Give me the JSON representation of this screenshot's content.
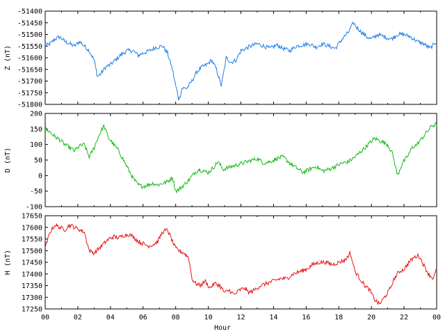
{
  "chart_data": {
    "type": "line",
    "xlabel": "Hour",
    "x_tick_labels": [
      "00",
      "02",
      "04",
      "06",
      "08",
      "10",
      "12",
      "14",
      "16",
      "18",
      "20",
      "22",
      "00"
    ],
    "x_range": [
      0,
      24
    ],
    "panels": [
      {
        "id": "z",
        "ylabel": "Z (nT)",
        "ylim": [
          -51800,
          -51400
        ],
        "yticks": [
          -51400,
          -51450,
          -51500,
          -51550,
          -51600,
          -51650,
          -51700,
          -51750,
          -51800
        ],
        "color": "#1f7fe6",
        "series": [
          {
            "x": [
              0,
              0.3,
              0.6,
              0.9,
              1.2,
              1.5,
              1.8,
              2.1,
              2.4,
              2.7,
              3.0,
              3.2,
              3.4,
              3.7,
              4.0,
              4.3,
              4.6,
              5.0,
              5.4,
              5.7,
              6.0,
              6.4,
              6.8,
              7.2,
              7.5,
              7.8,
              8.0,
              8.2,
              8.4,
              8.7,
              9.0,
              9.3,
              9.6,
              9.9,
              10.2,
              10.5,
              10.8,
              11.1,
              11.4,
              11.7,
              12.0,
              12.3,
              12.6,
              13.0,
              13.4,
              13.8,
              14.2,
              14.6,
              15.0,
              15.4,
              15.8,
              16.2,
              16.6,
              17.0,
              17.4,
              17.8,
              18.2,
              18.6,
              18.9,
              19.1,
              19.4,
              19.7,
              20.0,
              20.4,
              20.8,
              21.2,
              21.6,
              22.0,
              22.4,
              22.8,
              23.2,
              23.6,
              24.0
            ],
            "y": [
              -51550,
              -51540,
              -51520,
              -51510,
              -51530,
              -51540,
              -51550,
              -51530,
              -51550,
              -51570,
              -51610,
              -51680,
              -51670,
              -51640,
              -51630,
              -51610,
              -51590,
              -51570,
              -51570,
              -51590,
              -51580,
              -51570,
              -51555,
              -51550,
              -51580,
              -51650,
              -51720,
              -51780,
              -51730,
              -51730,
              -51700,
              -51660,
              -51640,
              -51630,
              -51610,
              -51650,
              -51720,
              -51600,
              -51620,
              -51610,
              -51570,
              -51560,
              -51550,
              -51540,
              -51550,
              -51560,
              -51545,
              -51560,
              -51570,
              -51550,
              -51545,
              -51540,
              -51555,
              -51540,
              -51550,
              -51560,
              -51520,
              -51490,
              -51450,
              -51470,
              -51490,
              -51510,
              -51520,
              -51500,
              -51510,
              -51520,
              -51500,
              -51500,
              -51510,
              -51530,
              -51540,
              -51560,
              -51530
            ]
          }
        ]
      },
      {
        "id": "d",
        "ylabel": "D (nT)",
        "ylim": [
          -100,
          200
        ],
        "yticks": [
          200,
          150,
          100,
          50,
          0,
          -50,
          -100
        ],
        "color": "#18b818",
        "series": [
          {
            "x": [
              0,
              0.3,
              0.6,
              0.9,
              1.2,
              1.5,
              1.8,
              2.1,
              2.4,
              2.7,
              3.0,
              3.3,
              3.6,
              3.9,
              4.2,
              4.5,
              4.8,
              5.1,
              5.4,
              5.7,
              6.0,
              6.3,
              6.6,
              6.9,
              7.2,
              7.5,
              7.8,
              8.0,
              8.2,
              8.5,
              8.8,
              9.1,
              9.4,
              9.7,
              10.0,
              10.3,
              10.6,
              10.9,
              11.2,
              11.5,
              11.8,
              12.1,
              12.4,
              12.7,
              13.0,
              13.4,
              13.8,
              14.2,
              14.6,
              15.0,
              15.4,
              15.8,
              16.2,
              16.6,
              17.0,
              17.4,
              17.8,
              18.2,
              18.6,
              19.0,
              19.4,
              19.8,
              20.2,
              20.6,
              21.0,
              21.3,
              21.6,
              21.9,
              22.2,
              22.5,
              22.8,
              23.1,
              23.4,
              23.7,
              24.0
            ],
            "y": [
              150,
              140,
              125,
              115,
              100,
              90,
              80,
              95,
              100,
              60,
              90,
              130,
              160,
              120,
              100,
              80,
              50,
              20,
              -10,
              -30,
              -35,
              -30,
              -25,
              -30,
              -25,
              -20,
              -5,
              -50,
              -45,
              -30,
              -15,
              5,
              20,
              15,
              10,
              25,
              45,
              20,
              25,
              30,
              35,
              40,
              45,
              50,
              55,
              40,
              45,
              55,
              60,
              40,
              25,
              10,
              20,
              30,
              15,
              20,
              30,
              40,
              45,
              60,
              80,
              100,
              120,
              110,
              100,
              70,
              0,
              40,
              60,
              90,
              100,
              120,
              140,
              160,
              165
            ]
          }
        ]
      },
      {
        "id": "h",
        "ylabel": "H (nT)",
        "ylim": [
          17250,
          17650
        ],
        "yticks": [
          17650,
          17600,
          17550,
          17500,
          17450,
          17400,
          17350,
          17300,
          17250
        ],
        "color": "#e61414",
        "series": [
          {
            "x": [
              0,
              0.3,
              0.6,
              0.9,
              1.2,
              1.5,
              1.8,
              2.1,
              2.4,
              2.7,
              3.0,
              3.3,
              3.6,
              3.9,
              4.2,
              4.5,
              4.8,
              5.1,
              5.4,
              5.7,
              6.0,
              6.3,
              6.6,
              6.9,
              7.2,
              7.5,
              7.8,
              8.0,
              8.2,
              8.5,
              8.8,
              9.0,
              9.2,
              9.5,
              9.8,
              10.1,
              10.4,
              10.7,
              11.0,
              11.3,
              11.6,
              11.9,
              12.2,
              12.5,
              12.8,
              13.2,
              13.6,
              14.0,
              14.4,
              14.8,
              15.2,
              15.6,
              16.0,
              16.4,
              16.8,
              17.2,
              17.6,
              18.0,
              18.4,
              18.7,
              19.0,
              19.3,
              19.6,
              19.9,
              20.2,
              20.5,
              20.8,
              21.1,
              21.4,
              21.7,
              22.0,
              22.3,
              22.6,
              22.9,
              23.2,
              23.5,
              23.8,
              24.0
            ],
            "y": [
              17510,
              17580,
              17610,
              17600,
              17590,
              17610,
              17600,
              17590,
              17580,
              17500,
              17490,
              17510,
              17530,
              17550,
              17560,
              17555,
              17565,
              17570,
              17560,
              17540,
              17530,
              17520,
              17525,
              17540,
              17580,
              17590,
              17540,
              17510,
              17500,
              17490,
              17470,
              17380,
              17360,
              17350,
              17370,
              17340,
              17360,
              17350,
              17320,
              17330,
              17310,
              17330,
              17340,
              17320,
              17330,
              17350,
              17360,
              17370,
              17380,
              17380,
              17400,
              17410,
              17420,
              17440,
              17450,
              17450,
              17440,
              17450,
              17460,
              17490,
              17410,
              17380,
              17350,
              17330,
              17290,
              17270,
              17300,
              17330,
              17380,
              17410,
              17420,
              17450,
              17470,
              17480,
              17440,
              17400,
              17380,
              17420
            ]
          }
        ]
      }
    ]
  }
}
